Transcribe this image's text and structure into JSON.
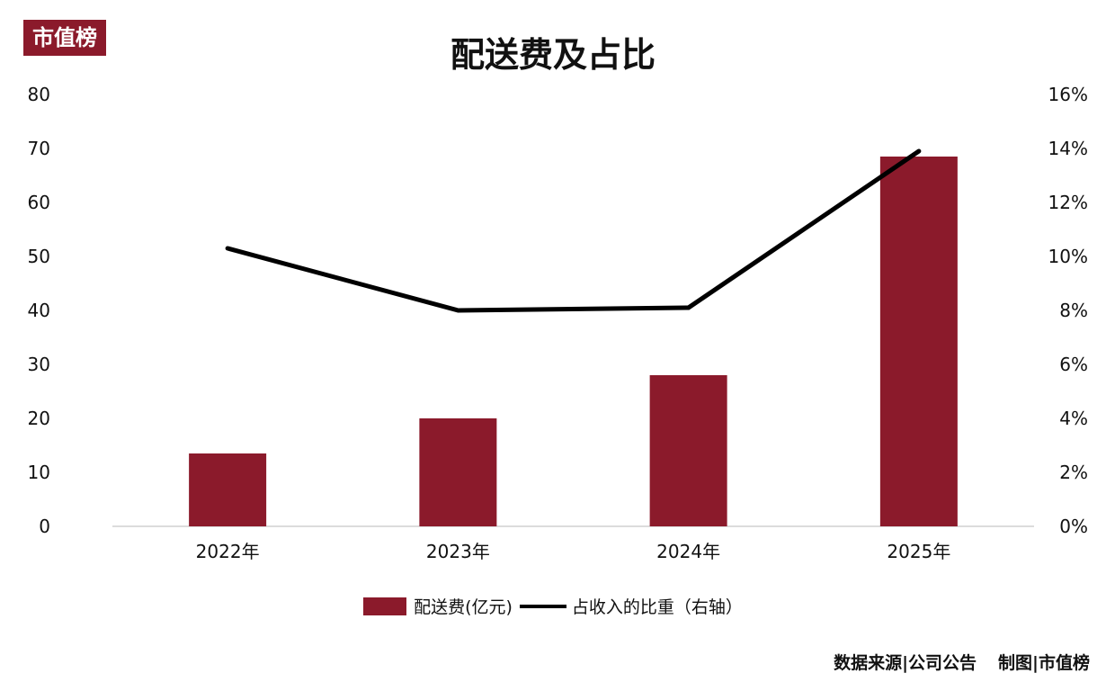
{
  "logo_text": "市值榜",
  "chart_data": {
    "type": "bar",
    "title": "配送费及占比",
    "categories": [
      "2022年",
      "2023年",
      "2024年",
      "2025年"
    ],
    "ylim_left": [
      0,
      80
    ],
    "ylim_right": [
      0,
      16
    ],
    "yticks_left": [
      "0",
      "10",
      "20",
      "30",
      "40",
      "50",
      "60",
      "70",
      "80"
    ],
    "yticks_right": [
      "0%",
      "2%",
      "4%",
      "6%",
      "8%",
      "10%",
      "12%",
      "14%",
      "16%"
    ],
    "series": [
      {
        "name": "配送费(亿元)",
        "type": "bar",
        "axis": "left",
        "color": "#8b1a2b",
        "values": [
          13.5,
          20,
          28,
          68.5
        ]
      },
      {
        "name": "占收入的比重（右轴）",
        "type": "line",
        "axis": "right",
        "color": "#000000",
        "values": [
          10.3,
          8.0,
          8.1,
          13.9
        ]
      }
    ],
    "legend_position": "bottom",
    "grid": false
  },
  "footer": {
    "source": "数据来源|公司公告",
    "maker": "制图|市值榜"
  }
}
